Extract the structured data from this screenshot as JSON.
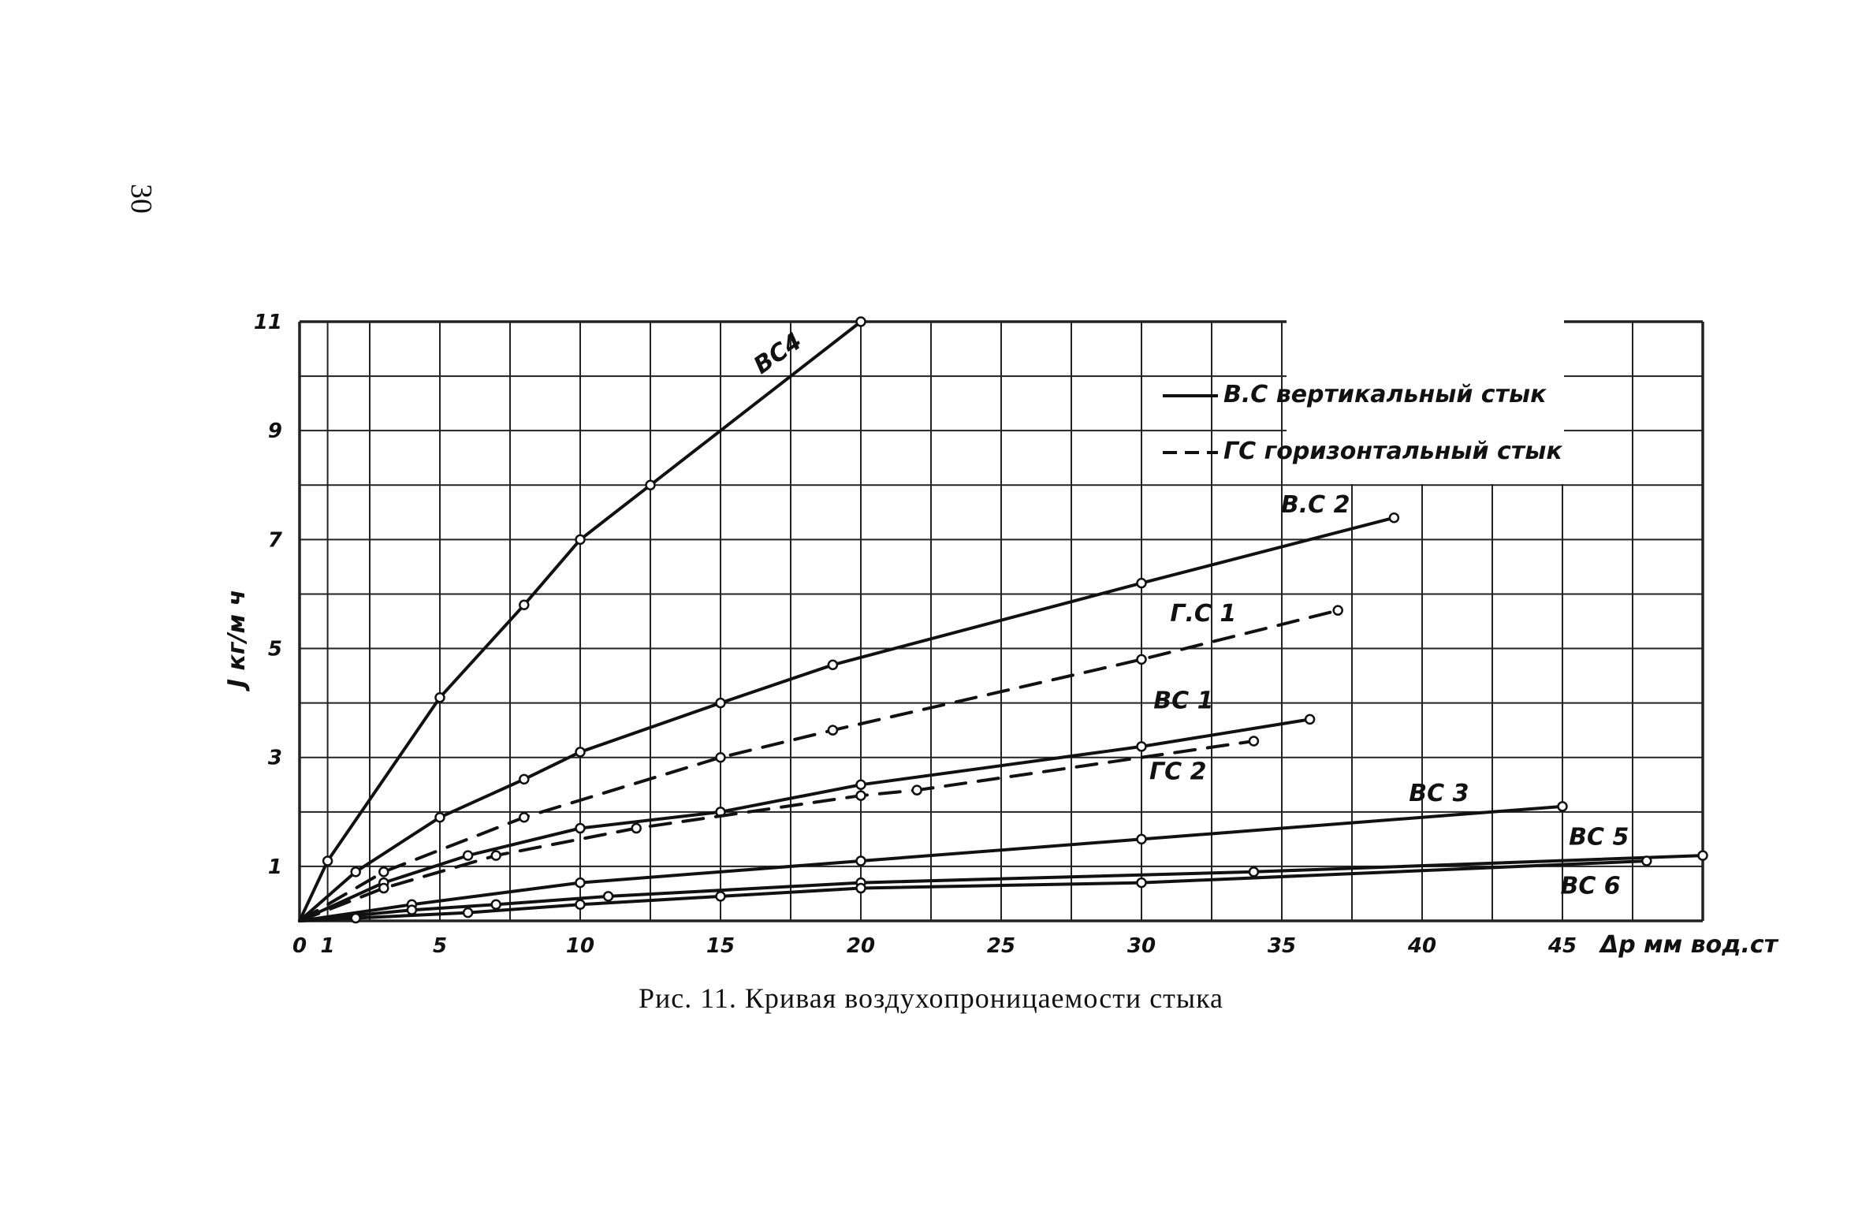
{
  "page_number": "30",
  "caption": "Рис. 11. Кривая воздухопроницаемости стыка",
  "chart_data": {
    "type": "line",
    "ylabel": "J кг/м ч",
    "xlabel": "Δр мм вод.ст",
    "xlim": [
      0,
      50
    ],
    "ylim": [
      0,
      11
    ],
    "x_ticks": [
      0,
      1,
      5,
      10,
      15,
      20,
      25,
      30,
      35,
      40,
      45
    ],
    "x_tick_labels": [
      "0",
      "1",
      "5",
      "10",
      "15",
      "20",
      "25",
      "30",
      "35",
      "40",
      "45"
    ],
    "y_ticks": [
      1,
      3,
      5,
      7,
      9,
      11
    ],
    "y_tick_labels": [
      "1",
      "3",
      "5",
      "7",
      "9",
      "11"
    ],
    "grid": true,
    "legend_position": "top-right",
    "legend": [
      {
        "style": "solid",
        "label": "В.С вертикальный стык"
      },
      {
        "style": "dashed",
        "label": "ГС горизонтальный стык"
      }
    ],
    "series": [
      {
        "name": "ВС4",
        "style": "solid",
        "label_at": [
          17.2,
          10.3
        ],
        "label_rotate": -35,
        "x": [
          0,
          1,
          5,
          8,
          10,
          12.5,
          20
        ],
        "y": [
          0,
          1.1,
          4.1,
          5.8,
          7.0,
          8.0,
          11.0
        ]
      },
      {
        "name": "В.С 2",
        "style": "solid",
        "label_at": [
          36.2,
          7.5
        ],
        "label_rotate": 0,
        "x": [
          0,
          2,
          5,
          8,
          10,
          15,
          19,
          30,
          39
        ],
        "y": [
          0,
          0.9,
          1.9,
          2.6,
          3.1,
          4.0,
          4.7,
          6.2,
          7.4
        ]
      },
      {
        "name": "Г.С 1",
        "style": "dashed",
        "label_at": [
          32.2,
          5.5
        ],
        "label_rotate": 0,
        "x": [
          0,
          3,
          8,
          15,
          19,
          30,
          37
        ],
        "y": [
          0,
          0.9,
          1.9,
          3.0,
          3.5,
          4.8,
          5.7
        ]
      },
      {
        "name": "ВС 1",
        "style": "solid",
        "label_at": [
          31.5,
          3.9
        ],
        "label_rotate": 0,
        "x": [
          0,
          3,
          6,
          10,
          15,
          20,
          30,
          36
        ],
        "y": [
          0,
          0.7,
          1.2,
          1.7,
          2.0,
          2.5,
          3.2,
          3.7
        ]
      },
      {
        "name": "ГС 2",
        "style": "dashed",
        "label_at": [
          31.3,
          2.6
        ],
        "label_rotate": 0,
        "x": [
          0,
          3,
          7,
          12,
          20,
          22,
          34
        ],
        "y": [
          0,
          0.6,
          1.2,
          1.7,
          2.3,
          2.4,
          3.3
        ]
      },
      {
        "name": "ВС 3",
        "style": "solid",
        "label_at": [
          40.6,
          2.2
        ],
        "label_rotate": 0,
        "x": [
          0,
          4,
          10,
          20,
          30,
          45
        ],
        "y": [
          0,
          0.3,
          0.7,
          1.1,
          1.5,
          2.1
        ]
      },
      {
        "name": "ВС 5",
        "style": "solid",
        "label_at": [
          46.3,
          1.4
        ],
        "label_rotate": 0,
        "x": [
          0,
          4,
          7,
          11,
          20,
          34,
          50
        ],
        "y": [
          0,
          0.2,
          0.3,
          0.45,
          0.7,
          0.9,
          1.2
        ]
      },
      {
        "name": "ВС 6",
        "style": "solid",
        "label_at": [
          46.0,
          0.5
        ],
        "label_rotate": 0,
        "x": [
          0,
          2,
          6,
          10,
          15,
          20,
          30,
          48
        ],
        "y": [
          0,
          0.05,
          0.15,
          0.3,
          0.45,
          0.6,
          0.7,
          1.1
        ]
      }
    ]
  }
}
